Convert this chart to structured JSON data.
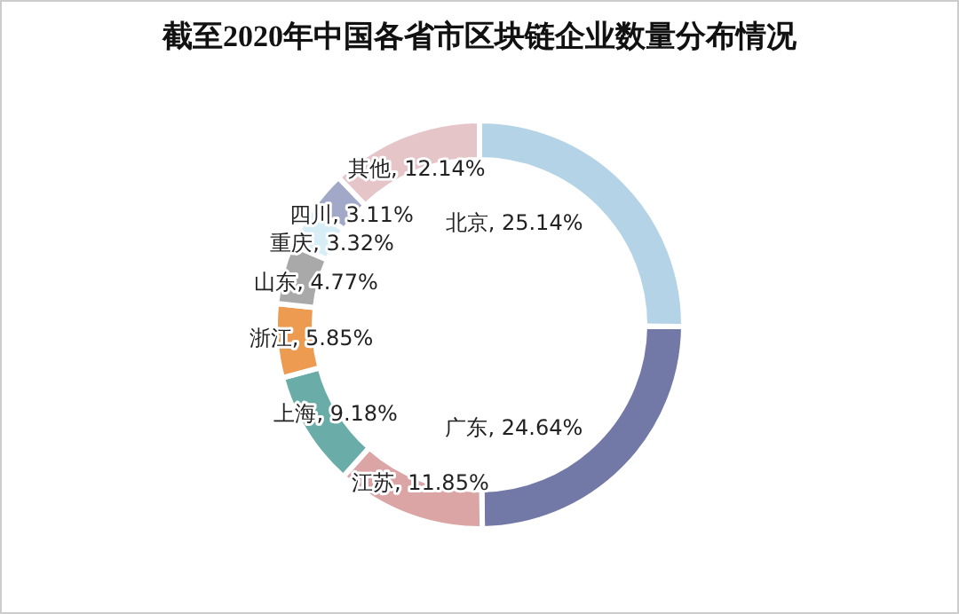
{
  "chart_data": {
    "type": "donut",
    "title": "截至2020年中国各省市区块链企业数量分布情况",
    "categories": [
      "北京",
      "广东",
      "江苏",
      "上海",
      "浙江",
      "山东",
      "重庆",
      "四川",
      "其他"
    ],
    "values": [
      25.14,
      24.64,
      11.85,
      9.18,
      5.85,
      4.77,
      3.32,
      3.11,
      12.14
    ],
    "value_labels": [
      ", 25.14%",
      ", 24.64%",
      ", 11.85%",
      ", 9.18%",
      ", 5.85%",
      ", 4.77%",
      ", 3.32%",
      ", 3.11%",
      ", 12.14%"
    ],
    "colors": [
      "#b4d3e6",
      "#7279a6",
      "#dba5a5",
      "#6aaca8",
      "#ee9b52",
      "#a9a9a9",
      "#d8eef7",
      "#a2a8c8",
      "#e6c5c9"
    ]
  }
}
